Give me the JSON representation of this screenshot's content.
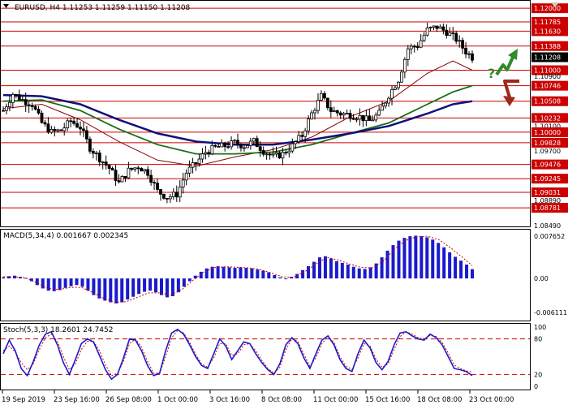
{
  "colors": {
    "level": "#cc0000",
    "level_label_bg": "#cc0000",
    "level_label_text": "#ffffff",
    "current_label_bg": "#000000",
    "candle": "#000000",
    "ma_red": "#8b0000",
    "ma_green": "#1a6b1a",
    "ma_blue": "#10107a",
    "macd_bar": "#1a1acc",
    "macd_signal": "#cc0000",
    "stoch_main": "#1a1acc",
    "stoch_signal": "#cc0000",
    "arrow_up": "#2e8b2e",
    "arrow_down": "#a0281a",
    "grid_bg": "#ffffff",
    "axis": "#000000"
  },
  "header": {
    "text": "EURUSD, H4   1.11253  1.11259  1.11150  1.11208"
  },
  "macd_header": {
    "text": "MACD(5,34,4)  0.001667  0.002345"
  },
  "stoch_header": {
    "text": "Stoch(5,3,3)  18.2601  24.7452"
  },
  "scenario": {
    "question_mark": "?"
  },
  "chart_data": [
    {
      "type": "candlestick",
      "title": "EURUSD, H4",
      "ohlc_last": {
        "open": 1.11253,
        "high": 1.11259,
        "low": 1.1115,
        "close": 1.11208
      },
      "ylim": [
        1.0848,
        1.1212
      ],
      "price_ticks": [
        {
          "value": 1.12,
          "label": "1.12000"
        },
        {
          "value": 1.1178,
          "label": "1.11785"
        },
        {
          "value": 1.1163,
          "label": "1.11630"
        },
        {
          "value": 1.1139,
          "label": "1.11388"
        },
        {
          "value": 1.1124,
          "label": "1.11244"
        },
        {
          "value": 1.1121,
          "label": "1.11208"
        },
        {
          "value": 1.11,
          "label": "1.11000"
        },
        {
          "value": 1.109,
          "label": "1.10900"
        },
        {
          "value": 1.1075,
          "label": "1.10746"
        },
        {
          "value": 1.105,
          "label": "1.10508"
        },
        {
          "value": 1.1023,
          "label": "1.10232"
        },
        {
          "value": 1.101,
          "label": "1.10100"
        },
        {
          "value": 1.1,
          "label": "1.10000"
        },
        {
          "value": 1.0983,
          "label": "1.09828"
        },
        {
          "value": 1.097,
          "label": "1.09700"
        },
        {
          "value": 1.0948,
          "label": "1.09476"
        },
        {
          "value": 1.0925,
          "label": "1.09245"
        },
        {
          "value": 1.0903,
          "label": "1.09031"
        },
        {
          "value": 1.089,
          "label": "1.08890"
        },
        {
          "value": 1.0878,
          "label": "1.08781"
        },
        {
          "value": 1.0849,
          "label": "1.08490"
        }
      ],
      "levels": [
        1.12,
        1.1178,
        1.1163,
        1.1139,
        1.11,
        1.1075,
        1.105,
        1.1023,
        1.1,
        1.0983,
        1.0948,
        1.0925,
        1.0903,
        1.0878
      ],
      "current_price": 1.1121,
      "x_labels": [
        "19 Sep 2019",
        "23 Sep 16:00",
        "26 Sep 08:00",
        "1 Oct 00:00",
        "3 Oct 16:00",
        "8 Oct 08:00",
        "11 Oct 00:00",
        "15 Oct 16:00",
        "18 Oct 08:00",
        "23 Oct 00:00"
      ],
      "price_path": [
        [
          0,
          1.1035
        ],
        [
          3,
          1.1062
        ],
        [
          6,
          1.1052
        ],
        [
          9,
          1.1045
        ],
        [
          12,
          1.1015
        ],
        [
          15,
          1.1
        ],
        [
          18,
          1.1003
        ],
        [
          21,
          1.1018
        ],
        [
          24,
          1.1008
        ],
        [
          27,
          1.0975
        ],
        [
          30,
          1.0958
        ],
        [
          33,
          1.0942
        ],
        [
          36,
          1.0918
        ],
        [
          39,
          1.0938
        ],
        [
          42,
          1.0945
        ],
        [
          45,
          1.0935
        ],
        [
          48,
          1.0905
        ],
        [
          51,
          1.0895
        ],
        [
          54,
          1.09
        ],
        [
          57,
          1.0935
        ],
        [
          60,
          1.095
        ],
        [
          63,
          1.0968
        ],
        [
          66,
          1.0975
        ],
        [
          69,
          1.0978
        ],
        [
          72,
          1.0983
        ],
        [
          75,
          1.0978
        ],
        [
          78,
          1.0985
        ],
        [
          81,
          1.097
        ],
        [
          84,
          1.096
        ],
        [
          87,
          1.0965
        ],
        [
          90,
          1.0978
        ],
        [
          93,
          1.0995
        ],
        [
          96,
          1.103
        ],
        [
          99,
          1.1058
        ],
        [
          102,
          1.1035
        ],
        [
          105,
          1.103
        ],
        [
          108,
          1.1028
        ],
        [
          111,
          1.1025
        ],
        [
          114,
          1.1018
        ],
        [
          117,
          1.103
        ],
        [
          120,
          1.106
        ],
        [
          123,
          1.1085
        ],
        [
          126,
          1.1135
        ],
        [
          129,
          1.114
        ],
        [
          132,
          1.1165
        ],
        [
          135,
          1.117
        ],
        [
          138,
          1.1162
        ],
        [
          141,
          1.115
        ],
        [
          144,
          1.113
        ],
        [
          146,
          1.1121
        ]
      ],
      "ma": [
        {
          "color_key": "ma_red",
          "points": [
            [
              0,
              1.1038
            ],
            [
              12,
              1.1045
            ],
            [
              24,
              1.102
            ],
            [
              36,
              1.0985
            ],
            [
              48,
              1.0955
            ],
            [
              60,
              1.0945
            ],
            [
              72,
              1.096
            ],
            [
              84,
              1.0972
            ],
            [
              96,
              1.0992
            ],
            [
              108,
              1.1025
            ],
            [
              120,
              1.105
            ],
            [
              132,
              1.1095
            ],
            [
              140,
              1.1115
            ],
            [
              146,
              1.11
            ]
          ]
        },
        {
          "color_key": "ma_green",
          "points": [
            [
              0,
              1.105
            ],
            [
              12,
              1.1052
            ],
            [
              24,
              1.1035
            ],
            [
              36,
              1.1005
            ],
            [
              48,
              1.098
            ],
            [
              60,
              1.0965
            ],
            [
              72,
              1.0965
            ],
            [
              84,
              1.0968
            ],
            [
              96,
              1.098
            ],
            [
              108,
              1.0998
            ],
            [
              120,
              1.1015
            ],
            [
              132,
              1.1045
            ],
            [
              140,
              1.1065
            ],
            [
              146,
              1.1075
            ]
          ]
        },
        {
          "color_key": "ma_blue",
          "points": [
            [
              0,
              1.106
            ],
            [
              12,
              1.1058
            ],
            [
              24,
              1.1045
            ],
            [
              36,
              1.102
            ],
            [
              48,
              1.0998
            ],
            [
              60,
              1.0985
            ],
            [
              72,
              1.098
            ],
            [
              84,
              1.098
            ],
            [
              96,
              1.0988
            ],
            [
              108,
              1.0998
            ],
            [
              120,
              1.101
            ],
            [
              132,
              1.103
            ],
            [
              140,
              1.1045
            ],
            [
              146,
              1.105
            ]
          ]
        }
      ]
    },
    {
      "type": "bar",
      "title": "MACD(5,34,4)",
      "values_label": [
        "0.001667",
        "0.002345"
      ],
      "ylim": [
        -0.007,
        0.0082
      ],
      "y_ticks": [
        {
          "value": 0.00762,
          "label": "0.007652"
        },
        {
          "value": 0.0,
          "label": "0.00"
        },
        {
          "value": -0.0061,
          "label": "-0.006111"
        }
      ],
      "histogram": [
        0.0002,
        0.0004,
        0.0005,
        0.0003,
        0.0001,
        -0.0005,
        -0.0012,
        -0.0018,
        -0.0022,
        -0.0023,
        -0.0021,
        -0.0017,
        -0.0014,
        -0.0012,
        -0.0015,
        -0.0022,
        -0.003,
        -0.0036,
        -0.004,
        -0.0043,
        -0.0045,
        -0.0043,
        -0.0038,
        -0.0033,
        -0.0028,
        -0.0024,
        -0.0022,
        -0.0025,
        -0.003,
        -0.0034,
        -0.0032,
        -0.0025,
        -0.0015,
        -0.0005,
        0.0005,
        0.0012,
        0.0018,
        0.0021,
        0.0022,
        0.0021,
        0.002,
        0.0019,
        0.002,
        0.0019,
        0.0018,
        0.0016,
        0.0014,
        0.0011,
        0.0006,
        0.0002,
        0.0,
        0.0003,
        0.0008,
        0.0015,
        0.0022,
        0.003,
        0.0038,
        0.004,
        0.0036,
        0.0031,
        0.0028,
        0.0025,
        0.0021,
        0.0018,
        0.0017,
        0.002,
        0.0027,
        0.0038,
        0.005,
        0.006,
        0.0068,
        0.0073,
        0.0076,
        0.0077,
        0.0076,
        0.0074,
        0.007,
        0.0064,
        0.0056,
        0.0047,
        0.0039,
        0.0032,
        0.0025,
        0.00167
      ],
      "signal": [
        0.0003,
        0.0003,
        0.0001,
        -0.0008,
        -0.0018,
        -0.002,
        -0.0016,
        -0.0016,
        -0.0025,
        -0.0036,
        -0.0043,
        -0.0042,
        -0.0034,
        -0.0026,
        -0.0026,
        -0.003,
        -0.002,
        -0.0003,
        0.0012,
        0.002,
        0.0021,
        0.002,
        0.0019,
        0.0016,
        0.001,
        0.0003,
        0.0002,
        0.0012,
        0.0026,
        0.0038,
        0.0033,
        0.0026,
        0.002,
        0.0019,
        0.003,
        0.0052,
        0.0068,
        0.0075,
        0.0076,
        0.007,
        0.0056,
        0.004,
        0.0023
      ]
    },
    {
      "type": "line",
      "title": "Stoch(5,3,3)",
      "values_label": [
        "18.2601",
        "24.7452"
      ],
      "ylim": [
        0,
        100
      ],
      "y_ticks": [
        {
          "value": 100,
          "label": "100"
        },
        {
          "value": 80,
          "label": "80"
        },
        {
          "value": 20,
          "label": "20"
        },
        {
          "value": 0,
          "label": "0"
        }
      ],
      "levels": [
        80,
        20
      ],
      "main": [
        55,
        78,
        60,
        30,
        18,
        42,
        70,
        88,
        92,
        70,
        40,
        20,
        45,
        72,
        80,
        75,
        52,
        28,
        12,
        20,
        48,
        80,
        78,
        60,
        35,
        18,
        22,
        60,
        90,
        96,
        88,
        70,
        50,
        35,
        30,
        55,
        80,
        68,
        45,
        60,
        75,
        72,
        55,
        40,
        28,
        20,
        38,
        70,
        82,
        72,
        48,
        30,
        55,
        78,
        85,
        70,
        45,
        30,
        25,
        55,
        78,
        65,
        40,
        28,
        42,
        70,
        90,
        92,
        85,
        80,
        78,
        88,
        82,
        70,
        50,
        30,
        28,
        25,
        18
      ],
      "signal": [
        60,
        68,
        58,
        40,
        28,
        38,
        62,
        82,
        88,
        76,
        50,
        28,
        38,
        62,
        76,
        76,
        60,
        36,
        18,
        22,
        42,
        72,
        80,
        66,
        42,
        22,
        22,
        50,
        82,
        94,
        90,
        74,
        54,
        38,
        32,
        48,
        72,
        72,
        52,
        55,
        70,
        72,
        60,
        44,
        30,
        22,
        32,
        62,
        80,
        76,
        54,
        34,
        48,
        72,
        84,
        74,
        50,
        34,
        28,
        48,
        72,
        68,
        46,
        32,
        38,
        62,
        84,
        92,
        88,
        82,
        80,
        86,
        84,
        74,
        56,
        36,
        30,
        26,
        24
      ]
    }
  ]
}
